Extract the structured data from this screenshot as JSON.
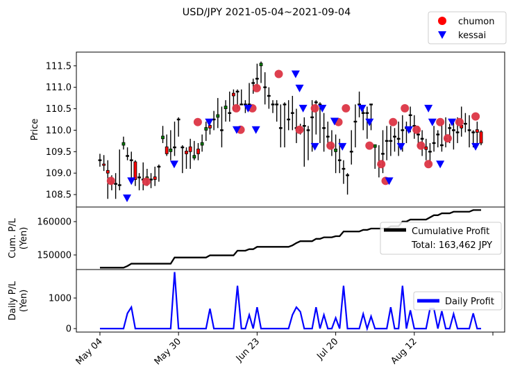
{
  "chart_data": {
    "title": "USD/JPY 2021-05-04~2021-09-04",
    "type": "candlestick+line",
    "x_tick_labels": [
      {
        "bar": 0,
        "label": "May 04"
      },
      {
        "bar": 20,
        "label": "May 30"
      },
      {
        "bar": 40,
        "label": "Jun 23"
      },
      {
        "bar": 60,
        "label": "Jul 20"
      },
      {
        "bar": 80,
        "label": "Aug 12"
      },
      {
        "bar": 100,
        "label": ""
      }
    ],
    "price_panel": {
      "ylabel": "Price",
      "ylim": [
        108.21,
        111.82
      ],
      "yticks": [
        "108.5",
        "109.0",
        "109.5",
        "110.0",
        "110.5",
        "111.0",
        "111.5"
      ],
      "up_color": "#008000",
      "down_color": "#ff0000",
      "candles_ohlc": [
        [
          109.3,
          109.45,
          109.15,
          109.3
        ],
        [
          109.2,
          109.42,
          109.05,
          109.18
        ],
        [
          109.05,
          109.3,
          108.4,
          109.0
        ],
        [
          108.8,
          108.95,
          108.6,
          108.75
        ],
        [
          108.75,
          109.0,
          108.4,
          108.75
        ],
        [
          108.72,
          109.55,
          108.6,
          108.72
        ],
        [
          109.65,
          109.85,
          109.55,
          109.7
        ],
        [
          109.4,
          109.6,
          109.3,
          109.4
        ],
        [
          109.3,
          109.5,
          108.8,
          109.3
        ],
        [
          109.25,
          109.3,
          108.7,
          108.85
        ],
        [
          108.9,
          109.0,
          108.6,
          108.9
        ],
        [
          108.85,
          109.25,
          108.6,
          108.85
        ],
        [
          108.85,
          109.1,
          108.7,
          108.9
        ],
        [
          108.85,
          109.0,
          108.65,
          108.85
        ],
        [
          108.9,
          109.15,
          108.7,
          108.85
        ],
        [
          109.15,
          109.2,
          108.8,
          109.15
        ],
        [
          109.8,
          110.1,
          109.7,
          109.85
        ],
        [
          109.6,
          109.9,
          109.4,
          109.45
        ],
        [
          109.5,
          110.0,
          109.3,
          109.55
        ],
        [
          109.6,
          110.2,
          109.4,
          109.6
        ],
        [
          110.25,
          110.3,
          109.85,
          110.25
        ],
        [
          109.6,
          109.65,
          109.0,
          109.6
        ],
        [
          109.5,
          109.6,
          109.1,
          109.45
        ],
        [
          109.6,
          109.8,
          109.1,
          109.5
        ],
        [
          109.35,
          109.75,
          109.3,
          109.4
        ],
        [
          109.55,
          109.7,
          109.3,
          109.45
        ],
        [
          109.65,
          109.9,
          109.5,
          109.7
        ],
        [
          110.0,
          110.2,
          109.75,
          110.05
        ],
        [
          110.1,
          110.2,
          109.9,
          110.05
        ],
        [
          110.25,
          110.45,
          110.0,
          110.25
        ],
        [
          110.3,
          110.75,
          110.05,
          110.35
        ],
        [
          110.0,
          110.55,
          109.6,
          110.0
        ],
        [
          110.5,
          110.7,
          110.2,
          110.55
        ],
        [
          110.4,
          110.9,
          110.2,
          110.4
        ],
        [
          110.85,
          110.95,
          110.45,
          110.8
        ],
        [
          110.9,
          110.95,
          110.5,
          110.9
        ],
        [
          110.6,
          110.95,
          110.6,
          110.6
        ],
        [
          110.6,
          110.7,
          110.4,
          110.6
        ],
        [
          110.6,
          111.1,
          110.45,
          110.6
        ],
        [
          111.1,
          111.2,
          110.85,
          111.1
        ],
        [
          111.2,
          111.55,
          111.0,
          111.2
        ],
        [
          111.5,
          111.6,
          111.1,
          111.55
        ],
        [
          111.0,
          111.35,
          110.6,
          111.0
        ],
        [
          110.8,
          111.0,
          110.5,
          110.8
        ],
        [
          110.6,
          110.7,
          110.4,
          110.6
        ],
        [
          110.6,
          110.7,
          110.2,
          110.6
        ],
        [
          110.05,
          110.6,
          109.6,
          110.05
        ],
        [
          110.6,
          110.65,
          109.6,
          110.6
        ],
        [
          110.25,
          110.7,
          110.0,
          110.25
        ],
        [
          110.4,
          110.8,
          110.0,
          110.4
        ],
        [
          110.05,
          110.5,
          109.7,
          110.05
        ],
        [
          110.0,
          110.15,
          109.9,
          110.0
        ],
        [
          110.1,
          110.3,
          109.15,
          110.1
        ],
        [
          110.0,
          110.1,
          109.3,
          110.0
        ],
        [
          110.3,
          110.7,
          109.5,
          110.3
        ],
        [
          110.65,
          110.7,
          109.9,
          110.65
        ],
        [
          110.6,
          110.65,
          109.7,
          110.6
        ],
        [
          110.05,
          110.4,
          109.5,
          110.05
        ],
        [
          109.85,
          110.2,
          109.6,
          109.85
        ],
        [
          109.6,
          110.0,
          109.4,
          109.6
        ],
        [
          109.5,
          109.9,
          109.0,
          109.55
        ],
        [
          109.3,
          109.8,
          109.0,
          109.3
        ],
        [
          109.1,
          109.3,
          108.75,
          109.1
        ],
        [
          108.95,
          109.0,
          108.5,
          108.95
        ],
        [
          109.5,
          110.0,
          109.2,
          109.5
        ],
        [
          110.2,
          110.6,
          109.6,
          110.2
        ],
        [
          110.6,
          110.9,
          110.3,
          110.6
        ],
        [
          110.4,
          110.5,
          110.0,
          110.4
        ],
        [
          110.4,
          110.55,
          109.8,
          110.4
        ],
        [
          110.6,
          110.6,
          110.0,
          110.6
        ],
        [
          109.6,
          109.65,
          109.1,
          109.65
        ],
        [
          109.2,
          109.65,
          108.9,
          109.2
        ],
        [
          109.45,
          110.0,
          109.0,
          109.45
        ],
        [
          109.75,
          110.1,
          109.3,
          109.75
        ],
        [
          109.75,
          110.1,
          109.4,
          109.75
        ],
        [
          109.85,
          110.05,
          109.5,
          109.85
        ],
        [
          109.8,
          110.2,
          109.4,
          109.8
        ],
        [
          110.0,
          110.35,
          109.5,
          110.0
        ],
        [
          110.05,
          110.2,
          109.7,
          110.05
        ],
        [
          110.35,
          110.55,
          109.95,
          110.35
        ],
        [
          110.1,
          110.35,
          109.8,
          110.1
        ],
        [
          109.9,
          110.1,
          109.6,
          109.9
        ],
        [
          109.8,
          110.0,
          109.4,
          109.8
        ],
        [
          109.6,
          109.8,
          109.3,
          109.55
        ],
        [
          109.5,
          109.7,
          109.2,
          109.5
        ],
        [
          109.7,
          110.1,
          109.5,
          109.7
        ],
        [
          109.9,
          110.0,
          109.6,
          109.9
        ],
        [
          109.65,
          110.2,
          109.5,
          109.65
        ],
        [
          109.8,
          110.3,
          109.6,
          109.8
        ],
        [
          110.05,
          110.15,
          109.7,
          110.05
        ],
        [
          110.0,
          110.25,
          109.55,
          110.0
        ],
        [
          109.95,
          110.3,
          109.7,
          109.95
        ],
        [
          110.1,
          110.55,
          109.85,
          110.05
        ],
        [
          110.15,
          110.4,
          109.95,
          110.15
        ],
        [
          110.0,
          110.35,
          109.6,
          110.0
        ],
        [
          109.95,
          110.0,
          109.6,
          109.95
        ],
        [
          110.0,
          110.2,
          109.7,
          109.95
        ],
        [
          109.95,
          110.0,
          109.65,
          109.7
        ]
      ],
      "legend": {
        "placement": "top-right (outside)",
        "entries": [
          "chumon",
          "kessai"
        ]
      },
      "chumon": {
        "name": "chumon",
        "color": "#dc3545",
        "marker": "circle",
        "points": [
          [
            2.8,
            108.82
          ],
          [
            11.8,
            108.8
          ],
          [
            24.9,
            110.19
          ],
          [
            34.7,
            110.51
          ],
          [
            35.8,
            110.01
          ],
          [
            38.8,
            110.51
          ],
          [
            39.9,
            110.98
          ],
          [
            45.5,
            111.31
          ],
          [
            50.8,
            110.01
          ],
          [
            54.7,
            110.51
          ],
          [
            58.7,
            109.64
          ],
          [
            60.7,
            110.19
          ],
          [
            62.6,
            110.51
          ],
          [
            68.6,
            109.64
          ],
          [
            71.6,
            109.21
          ],
          [
            72.7,
            108.82
          ],
          [
            74.6,
            110.19
          ],
          [
            77.6,
            110.51
          ],
          [
            80.6,
            110.01
          ],
          [
            81.7,
            109.64
          ],
          [
            83.6,
            109.21
          ],
          [
            86.6,
            110.19
          ],
          [
            88.5,
            109.81
          ],
          [
            91.5,
            110.19
          ],
          [
            95.6,
            110.32
          ]
        ]
      },
      "kessai": {
        "name": "kessai",
        "color": "#0000ff",
        "marker": "triangle-down",
        "points": [
          [
            6.9,
            108.42
          ],
          [
            8.0,
            108.82
          ],
          [
            18.9,
            109.21
          ],
          [
            27.8,
            110.19
          ],
          [
            34.8,
            110.01
          ],
          [
            37.7,
            110.51
          ],
          [
            39.7,
            110.01
          ],
          [
            49.8,
            111.31
          ],
          [
            50.8,
            110.98
          ],
          [
            51.7,
            110.51
          ],
          [
            54.7,
            109.62
          ],
          [
            56.6,
            110.51
          ],
          [
            59.7,
            110.21
          ],
          [
            61.7,
            109.62
          ],
          [
            66.7,
            110.51
          ],
          [
            68.6,
            110.19
          ],
          [
            73.6,
            108.82
          ],
          [
            76.6,
            109.62
          ],
          [
            78.6,
            110.01
          ],
          [
            83.6,
            110.51
          ],
          [
            84.6,
            110.19
          ],
          [
            86.6,
            109.21
          ],
          [
            89.6,
            110.19
          ],
          [
            95.6,
            109.62
          ]
        ]
      }
    },
    "cumulative_panel": {
      "ylabel": "Cum. P/L\n(Yen)",
      "ylim": [
        145625,
        164375
      ],
      "yticks": [
        150000,
        160000
      ],
      "ytick_labels": [
        "150000",
        "160000"
      ],
      "series_name": "Cumulative Profit",
      "color": "#000000",
      "total_text": "Total: 163,462 JPY",
      "legend_placement": "center-right",
      "values": [
        146182,
        146182,
        146182,
        146182,
        146182,
        146182,
        146182,
        146682,
        147382,
        147382,
        147382,
        147382,
        147382,
        147382,
        147382,
        147382,
        147382,
        147382,
        147382,
        149232,
        149232,
        149232,
        149232,
        149232,
        149232,
        149232,
        149232,
        149232,
        149882,
        149882,
        149882,
        149882,
        149882,
        149882,
        149882,
        151282,
        151282,
        151282,
        151732,
        151732,
        152432,
        152432,
        152432,
        152432,
        152432,
        152432,
        152432,
        152432,
        152432,
        152882,
        153582,
        154132,
        154132,
        154132,
        154132,
        154832,
        154832,
        155282,
        155282,
        155282,
        155632,
        155632,
        157032,
        157032,
        157032,
        157032,
        157032,
        157512,
        157512,
        157912,
        157912,
        157912,
        157912,
        157912,
        158612,
        158612,
        158612,
        160012,
        160012,
        160612,
        160612,
        160612,
        160612,
        160612,
        161262,
        161912,
        161912,
        162482,
        162482,
        162482,
        162962,
        162962,
        162962,
        162962,
        162962,
        163462,
        163462,
        163462
      ]
    },
    "daily_panel": {
      "ylabel": "Daily P/L\n(Yen)",
      "ylim": [
        -114,
        1932
      ],
      "yticks": [
        0,
        1000
      ],
      "ytick_labels": [
        "0",
        "1000"
      ],
      "series_name": "Daily Profit",
      "color": "#0000ff",
      "legend_placement": "center-right",
      "values": [
        0,
        0,
        0,
        0,
        0,
        0,
        0,
        500,
        700,
        0,
        0,
        0,
        0,
        0,
        0,
        0,
        0,
        0,
        0,
        1850,
        0,
        0,
        0,
        0,
        0,
        0,
        0,
        0,
        650,
        0,
        0,
        0,
        0,
        0,
        0,
        1400,
        0,
        0,
        450,
        0,
        700,
        0,
        0,
        0,
        0,
        0,
        0,
        0,
        0,
        450,
        700,
        550,
        0,
        0,
        0,
        700,
        0,
        450,
        0,
        0,
        350,
        0,
        1400,
        0,
        0,
        0,
        0,
        480,
        0,
        400,
        0,
        0,
        0,
        0,
        700,
        0,
        0,
        1400,
        0,
        600,
        0,
        0,
        0,
        0,
        650,
        650,
        0,
        570,
        0,
        0,
        480,
        0,
        0,
        0,
        0,
        500,
        0,
        0
      ]
    }
  }
}
